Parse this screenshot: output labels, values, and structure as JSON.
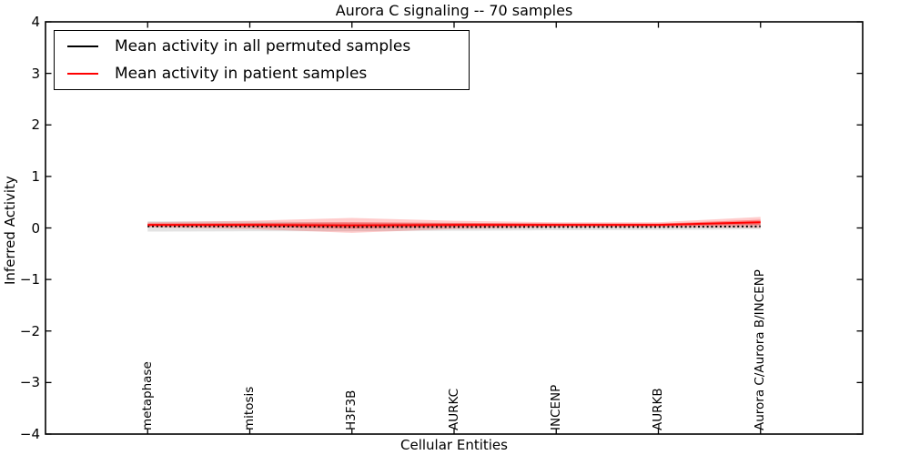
{
  "chart_data": {
    "type": "line",
    "title": "Aurora C signaling -- 70 samples",
    "xlabel": "Cellular Entities",
    "ylabel": "Inferred Activity",
    "ylim": [
      -4,
      4
    ],
    "yticks": [
      4,
      3,
      2,
      1,
      0,
      -1,
      -2,
      -3,
      -4
    ],
    "xlim_index": [
      -1,
      7
    ],
    "grid": false,
    "legend_position": "upper-left",
    "categories": [
      "metaphase",
      "mitosis",
      "H3F3B",
      "AURKC",
      "INCENP",
      "AURKB",
      "Aurora C/Aurora B/INCENP"
    ],
    "series": [
      {
        "name": "Mean activity in all permuted samples",
        "color": "#000000",
        "style": "dotted",
        "mean": [
          0.03,
          0.03,
          0.02,
          0.02,
          0.02,
          0.02,
          0.03
        ],
        "band": [
          0.1,
          0.095,
          0.085,
          0.075,
          0.065,
          0.06,
          0.055
        ],
        "band_color": "rgba(0,0,0,0.11)"
      },
      {
        "name": "Mean activity in patient samples",
        "color": "#ff0000",
        "style": "solid",
        "mean": [
          0.06,
          0.06,
          0.05,
          0.06,
          0.06,
          0.06,
          0.11
        ],
        "band": [
          0.05,
          0.08,
          0.145,
          0.08,
          0.05,
          0.05,
          0.105
        ],
        "band_inner": [
          0.025,
          0.035,
          0.06,
          0.04,
          0.025,
          0.025,
          0.05
        ],
        "band_color": "rgba(255,0,0,0.20)",
        "band_inner_color": "rgba(255,0,0,0.35)"
      }
    ]
  }
}
